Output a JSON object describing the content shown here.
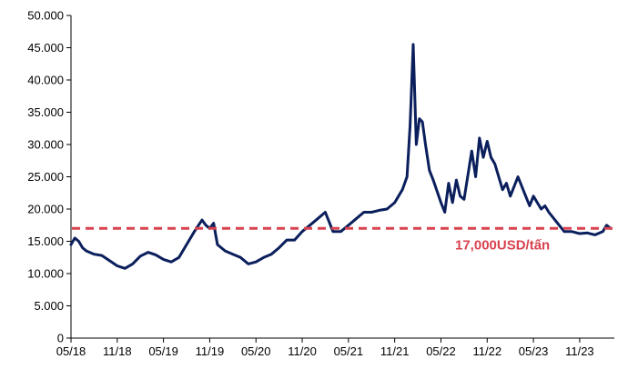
{
  "chart_data": {
    "type": "line",
    "title": "",
    "xlabel": "",
    "ylabel": "",
    "ylim": [
      0,
      50000
    ],
    "y_ticks": [
      "0",
      "5.000",
      "10.000",
      "15.000",
      "20.000",
      "25.000",
      "30.000",
      "35.000",
      "40.000",
      "45.000",
      "50.000"
    ],
    "x_ticks": [
      "05/18",
      "11/18",
      "05/19",
      "11/19",
      "05/20",
      "11/20",
      "05/21",
      "11/21",
      "05/22",
      "11/22",
      "05/23",
      "11/23"
    ],
    "grid": false,
    "legend": "none",
    "colors": {
      "series": "#0b1f5c",
      "reference": "#d9424f",
      "axis": "#000000"
    },
    "reference_line": {
      "value": 17000,
      "label": "17,000USD/tấn",
      "style": "dashed"
    },
    "series": [
      {
        "x_months": [
          0,
          0.5,
          1,
          1.5,
          2,
          3,
          4,
          5,
          6,
          7,
          8,
          9,
          10,
          11,
          12,
          13,
          14,
          15,
          16,
          17,
          17.5,
          18,
          18.5,
          19,
          20,
          21,
          22,
          23,
          24,
          25,
          26,
          27,
          28,
          29,
          30,
          31,
          32,
          33,
          34,
          35,
          36,
          37,
          38,
          39,
          40,
          41,
          42,
          43,
          43.6,
          44,
          44.4,
          44.8,
          45.2,
          45.6,
          46,
          46.5,
          47,
          48,
          48.5,
          49,
          49.5,
          50,
          50.5,
          51,
          52,
          52.5,
          53,
          53.5,
          54,
          54.5,
          55,
          56,
          56.5,
          57,
          58,
          59,
          59.5,
          60,
          60.5,
          61,
          61.5,
          62,
          63,
          64,
          65,
          66,
          67,
          68,
          69,
          69.5,
          70
        ],
        "values": [
          14500,
          15500,
          15000,
          14000,
          13500,
          13000,
          12800,
          12000,
          11200,
          10800,
          11500,
          12700,
          13300,
          12900,
          12200,
          11800,
          12500,
          14500,
          16500,
          18300,
          17500,
          17000,
          17800,
          14500,
          13500,
          13000,
          12500,
          11500,
          11800,
          12500,
          13000,
          14000,
          15200,
          15200,
          16500,
          17500,
          18500,
          19500,
          16500,
          16500,
          17500,
          18500,
          19500,
          19500,
          19800,
          20000,
          21000,
          23000,
          25000,
          33000,
          45500,
          30000,
          34000,
          33500,
          30000,
          26000,
          24500,
          21000,
          19500,
          24000,
          21000,
          24500,
          22000,
          21500,
          29000,
          25000,
          31000,
          28000,
          30500,
          28000,
          27000,
          23000,
          24000,
          22000,
          25000,
          22000,
          20500,
          22000,
          21000,
          20000,
          20500,
          19500,
          18000,
          16500,
          16500,
          16200,
          16300,
          16000,
          16500,
          17500,
          17000
        ]
      }
    ]
  }
}
